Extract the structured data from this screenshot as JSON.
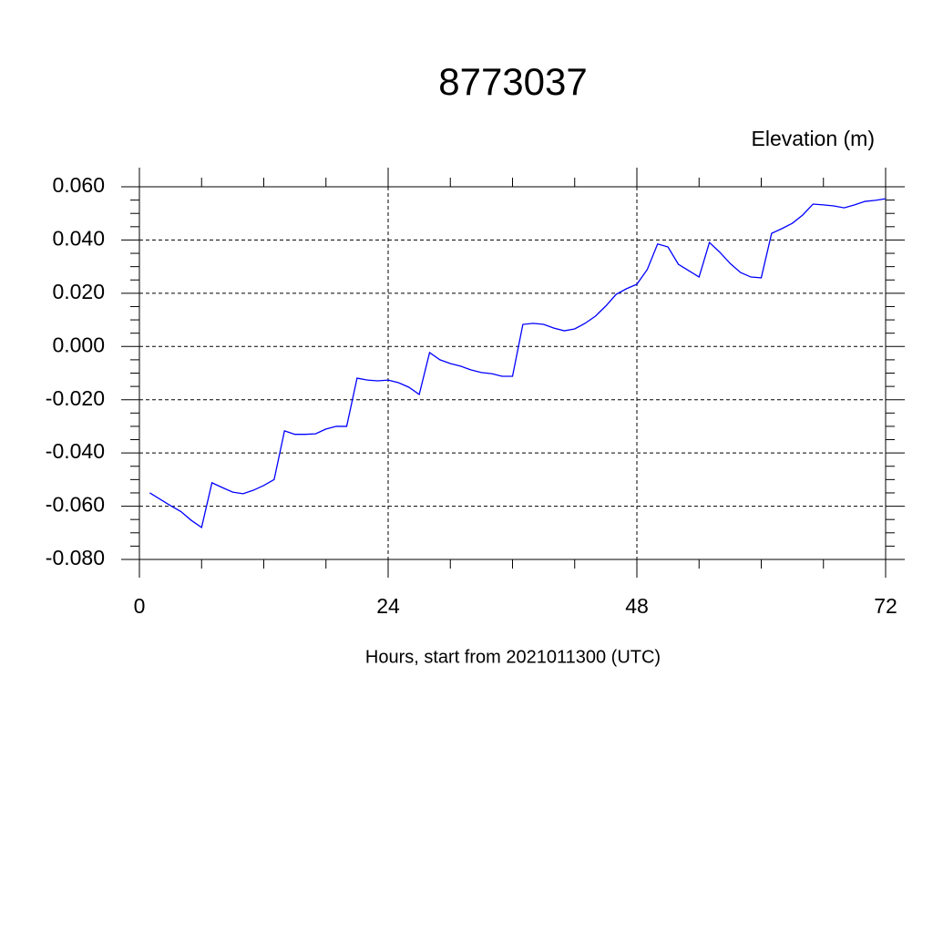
{
  "chart_data": {
    "type": "line",
    "title": "8773037",
    "subtitle": "Elevation (m)",
    "x_label": "Hours, start from 2021011300 (UTC)",
    "xlim": [
      0,
      72
    ],
    "xticks": [
      0,
      24,
      48,
      72
    ],
    "xminorticks": [
      6,
      12,
      18,
      30,
      36,
      42,
      54,
      60,
      66
    ],
    "ylim": [
      -0.08,
      0.06
    ],
    "yticks": [
      {
        "value": -0.08,
        "label": "-0.080"
      },
      {
        "value": -0.06,
        "label": "-0.060"
      },
      {
        "value": -0.04,
        "label": "-0.040"
      },
      {
        "value": -0.02,
        "label": "-0.020"
      },
      {
        "value": 0,
        "label": "0.000"
      },
      {
        "value": 0.02,
        "label": "0.020"
      },
      {
        "value": 0.04,
        "label": "0.040"
      },
      {
        "value": 0.06,
        "label": "0.060"
      }
    ],
    "yminorticks": [
      -0.075,
      -0.07,
      -0.065,
      -0.055,
      -0.05,
      -0.045,
      -0.035,
      -0.03,
      -0.025,
      -0.015,
      -0.01,
      -0.005,
      0.005,
      0.01,
      0.015,
      0.025,
      0.03,
      0.035,
      0.045,
      0.05,
      0.055
    ],
    "grid": true,
    "x": [
      1,
      2,
      3,
      4,
      5,
      6,
      7,
      8,
      9,
      10,
      11,
      12,
      13,
      14,
      15,
      16,
      17,
      18,
      19,
      20,
      21,
      22,
      23,
      24,
      25,
      26,
      27,
      28,
      29,
      30,
      31,
      32,
      33,
      34,
      35,
      36,
      37,
      38,
      39,
      40,
      41,
      42,
      43,
      44,
      45,
      46,
      47,
      48,
      49,
      50,
      51,
      52,
      53,
      54,
      55,
      56,
      57,
      58,
      59,
      60,
      61,
      62,
      63,
      64,
      65,
      66,
      67,
      68,
      69,
      70,
      71,
      72
    ],
    "series": [
      {
        "color": "#0000ff",
        "values": [
          -0.055,
          -0.0574,
          -0.0598,
          -0.062,
          -0.0653,
          -0.068,
          -0.0512,
          -0.053,
          -0.0547,
          -0.0553,
          -0.054,
          -0.0522,
          -0.05,
          -0.0317,
          -0.033,
          -0.033,
          -0.0328,
          -0.031,
          -0.03,
          -0.03,
          -0.0119,
          -0.0126,
          -0.0129,
          -0.0126,
          -0.0136,
          -0.0153,
          -0.018,
          -0.0023,
          -0.005,
          -0.0064,
          -0.0074,
          -0.0088,
          -0.0098,
          -0.0102,
          -0.0112,
          -0.0112,
          0.0083,
          0.0087,
          0.0083,
          0.0069,
          0.0059,
          0.0066,
          0.0087,
          0.0114,
          0.0152,
          0.0196,
          0.0217,
          0.0234,
          0.0289,
          0.0385,
          0.0374,
          0.0309,
          0.0285,
          0.0261,
          0.0391,
          0.0354,
          0.0312,
          0.0278,
          0.0261,
          0.0258,
          0.0425,
          0.0443,
          0.0463,
          0.0494,
          0.0535,
          0.0532,
          0.0528,
          0.0521,
          0.0532,
          0.0545,
          0.0549,
          0.0555
        ]
      }
    ]
  }
}
